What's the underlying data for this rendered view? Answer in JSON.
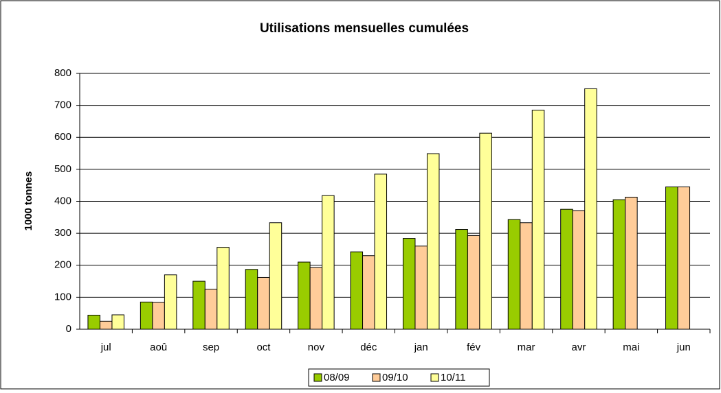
{
  "chart_data": {
    "type": "bar",
    "title": "Utilisations mensuelles cumulées",
    "y_label": "1000 tonnes",
    "categories": [
      "jul",
      "aoû",
      "sep",
      "oct",
      "nov",
      "déc",
      "jan",
      "fév",
      "mar",
      "avr",
      "mai",
      "jun"
    ],
    "series": [
      {
        "name": "08/09",
        "color": "#99cc00",
        "values": [
          44,
          85,
          150,
          187,
          210,
          242,
          284,
          312,
          343,
          375,
          405,
          445
        ]
      },
      {
        "name": "09/10",
        "color": "#ffcc99",
        "values": [
          25,
          84,
          125,
          162,
          193,
          230,
          260,
          293,
          333,
          371,
          413,
          445
        ]
      },
      {
        "name": "10/11",
        "color": "#ffff99",
        "values": [
          45,
          170,
          256,
          333,
          418,
          485,
          549,
          613,
          685,
          752,
          null,
          null
        ]
      }
    ],
    "ylim": [
      0,
      800
    ],
    "yticks": [
      0,
      100,
      200,
      300,
      400,
      500,
      600,
      700,
      800
    ],
    "grid": true,
    "legend": "bottom"
  }
}
